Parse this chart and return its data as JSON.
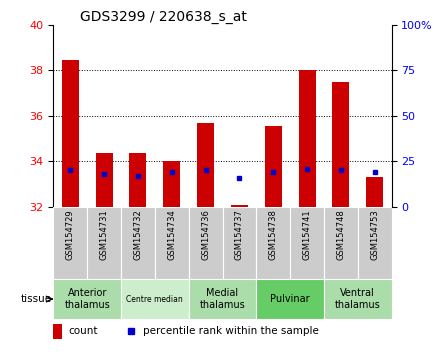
{
  "title": "GDS3299 / 220638_s_at",
  "samples": [
    "GSM154729",
    "GSM154731",
    "GSM154732",
    "GSM154734",
    "GSM154736",
    "GSM154737",
    "GSM154738",
    "GSM154741",
    "GSM154748",
    "GSM154753"
  ],
  "count_values": [
    38.45,
    34.35,
    34.35,
    34.0,
    35.7,
    32.1,
    35.55,
    38.0,
    37.5,
    33.3
  ],
  "percentile_values": [
    20,
    18,
    17,
    19,
    20,
    16,
    19,
    21,
    20,
    19
  ],
  "ymin": 32,
  "ymax": 40,
  "yticks": [
    32,
    34,
    36,
    38,
    40
  ],
  "right_yticks": [
    0,
    25,
    50,
    75,
    100
  ],
  "right_yticklabels": [
    "0",
    "25",
    "50",
    "75",
    "100%"
  ],
  "bar_color": "#cc0000",
  "point_color": "#0000cc",
  "tissue_groups": [
    {
      "label": "Anterior\nthalamus",
      "start": 0,
      "end": 1,
      "color": "#aaddaa"
    },
    {
      "label": "Centre median",
      "start": 2,
      "end": 3,
      "color": "#cceecc"
    },
    {
      "label": "Medial\nthalamus",
      "start": 4,
      "end": 5,
      "color": "#aaddaa"
    },
    {
      "label": "Pulvinar",
      "start": 6,
      "end": 7,
      "color": "#66cc66"
    },
    {
      "label": "Ventral\nthalamus",
      "start": 8,
      "end": 9,
      "color": "#aaddaa"
    }
  ],
  "legend_count_color": "#cc0000",
  "legend_percentile_color": "#0000cc",
  "bar_width": 0.5,
  "sample_box_color": "#cccccc",
  "spine_color": "#000000"
}
